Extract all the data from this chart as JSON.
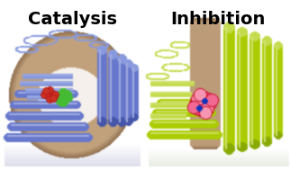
{
  "title_left": "Catalysis",
  "title_right": "Inhibition",
  "title_fontsize": 14,
  "title_fontweight": "bold",
  "title_color": "#000000",
  "bg_color": "#ffffff",
  "fig_width": 3.22,
  "fig_height": 1.89,
  "dpi": 100,
  "left_bg": "#ffffff",
  "right_bg": "#ffffff",
  "blue": "#6677cc",
  "blue_light": "#8899dd",
  "blue_dark": "#4455aa",
  "brown": "#b08860",
  "brown_light": "#c8a882",
  "brown_dark": "#907050",
  "green_ligand": "#44bb33",
  "red_ligand": "#cc3322",
  "yellow_green": "#aacc00",
  "yellow_green_dark": "#88aa00",
  "pink_ligand": "#dd2255",
  "pink_ligand2": "#ee4477",
  "blue_atom": "#1133bb",
  "white": "#ffffff",
  "shadow": "#d8d8e8"
}
